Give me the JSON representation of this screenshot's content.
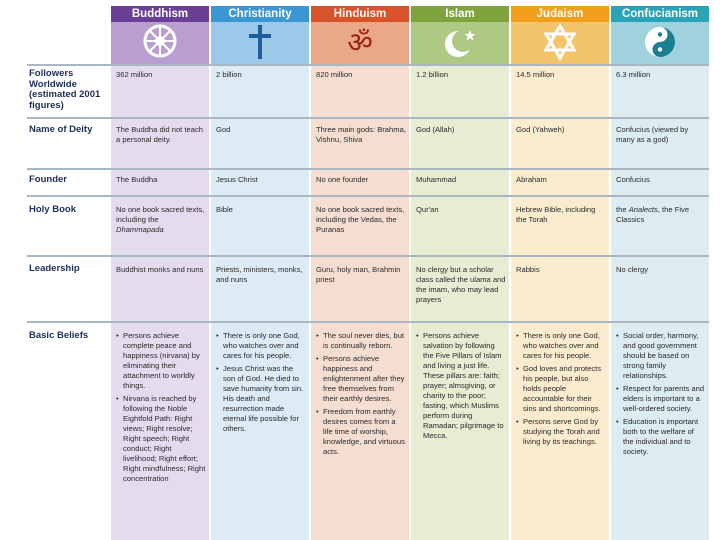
{
  "headers": [
    "Buddhism",
    "Christianity",
    "Hinduism",
    "Islam",
    "Judaism",
    "Confucianism"
  ],
  "icons": [
    "dharma-wheel-icon",
    "cross-icon",
    "om-icon",
    "crescent-star-icon",
    "star-of-david-icon",
    "yin-yang-icon"
  ],
  "colors": {
    "buddhism": "#6b3f93",
    "christianity": "#3a97d4",
    "hinduism": "#d9532a",
    "islam": "#7fa33c",
    "judaism": "#f2a01c",
    "confucianism": "#2aa3b7",
    "label_text": "#1e2e55"
  },
  "rows": {
    "followers": {
      "label": "Followers Worldwide (estimated 2001 figures)",
      "cells": [
        "362 million",
        "2 billion",
        "820 million",
        "1.2 billion",
        "14.5 million",
        "6.3 million"
      ]
    },
    "deity": {
      "label": "Name of Deity",
      "cells": [
        "The Buddha did not teach a personal deity.",
        "God",
        "Three main gods: Brahma, Vishnu, Shiva",
        "God (Allah)",
        "God (Yahweh)",
        "Confucius (viewed by many as a god)"
      ]
    },
    "founder": {
      "label": "Founder",
      "cells": [
        "The Buddha",
        "Jesus Christ",
        "No one founder",
        "Muhammad",
        "Abraham",
        "Confucius"
      ]
    },
    "holybook": {
      "label": "Holy Book",
      "buddhism": "No one book sacred texts, including the",
      "buddhism_title": "Dhammapada",
      "christianity": "Bible",
      "hinduism": "No one book sacred texts, including the Vedas, the Puranas",
      "islam": "Qur'an",
      "judaism": "Hebrew Bible, including the Torah",
      "confucianism_pre": "the",
      "confucianism_title": "Analects",
      "confucianism_post": ", the Five Classics"
    },
    "leadership": {
      "label": "Leadership",
      "cells": [
        "Buddhist monks and nuns",
        "Priests, ministers, monks, and nuns",
        "Guru, holy man, Brahmin priest",
        "No clergy but a scholar class called the ulama and the imam, who may lead prayers",
        "Rabbis",
        "No clergy"
      ]
    },
    "beliefs": {
      "label": "Basic Beliefs",
      "buddhism": [
        "Persons achieve complete peace and happiness (nirvana) by eliminating their attachment to worldly things.",
        "Nirvana is reached by following the Noble Eightfold Path: Right views; Right resolve; Right speech; Right conduct; Right livelihood; Right effort; Right mindfulness; Right concentration"
      ],
      "christianity": [
        "There is only one God, who watches over and cares for his people.",
        "Jesus Christ was the son of God. He died to save humanity from sin. His death and resurrection made eternal life possible for others."
      ],
      "hinduism": [
        "The soul never dies, but is continually reborn.",
        "Persons achieve happiness and enlightenment after they free themselves from their earthly desires.",
        "Freedom from earthly desires comes from a life time of worship, knowledge, and virtuous acts."
      ],
      "islam": [
        "Persons achieve salvation by following the Five Pillars of Islam and living a just life. These pillars are: faith; prayer; almsgiving, or charity to the poor; fasting, which Muslims perform during Ramadan; pilgrimage to Mecca."
      ],
      "judaism": [
        "There is only one God, who watches over and cares for his people.",
        "God loves and protects his people, but also holds people accountable for their sins and shortcomings.",
        "Persons serve God by studying the Torah and living by its teachings."
      ],
      "confucianism": [
        "Social order, harmony, and good government should be based on strong family relationships.",
        "Respect for parents and elders is important to a well-ordered society.",
        "Education is important both to the welfare of the individual and to society."
      ]
    }
  }
}
